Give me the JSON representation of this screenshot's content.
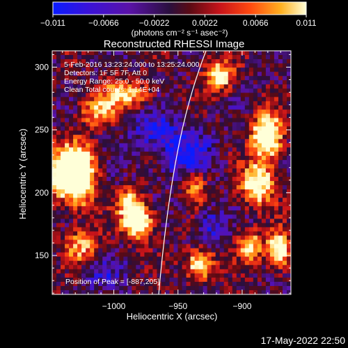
{
  "colorbar": {
    "tick_labels": [
      "-0.011",
      "-0.0066",
      "-0.0022",
      "0.0022",
      "0.0066",
      "0.011"
    ],
    "units_label": "(photons cm⁻² s⁻¹ asec⁻²)",
    "range": [
      -0.011,
      0.011
    ]
  },
  "image": {
    "title": "Reconstructed RHESSI Image",
    "annotations": [
      "5-Feb-2016 13:23:24.000 to 13:25:24.000",
      "Detectors: 1F 5F 7F, Att 0",
      "Energy Range: 25.0 - 50.0 keV",
      "Clean     Total counts: 1.14E+04"
    ],
    "peak_label": "Position of Peak = [-887,205]",
    "peak_position": [
      -887,
      205
    ],
    "x_axis": {
      "label": "Heliocentric X (arcsec)",
      "ticks": [
        -1000,
        -950,
        -900
      ],
      "tick_labels": [
        "−1000",
        "−950",
        "−900"
      ],
      "range": [
        -1048,
        -862
      ]
    },
    "y_axis": {
      "label": "Heliocentric Y (arcsec)",
      "ticks": [
        150,
        200,
        250,
        300
      ],
      "tick_labels": [
        "150",
        "200",
        "250",
        "300"
      ],
      "range": [
        119,
        313
      ]
    }
  },
  "timestamp": "17-May-2022 22:50",
  "colormap": [
    "#0a1cff",
    "#3a12d8",
    "#5a12a8",
    "#2a0f3e",
    "#5a0a14",
    "#c8141a",
    "#ff4a10",
    "#ffb020",
    "#ffffd8"
  ]
}
